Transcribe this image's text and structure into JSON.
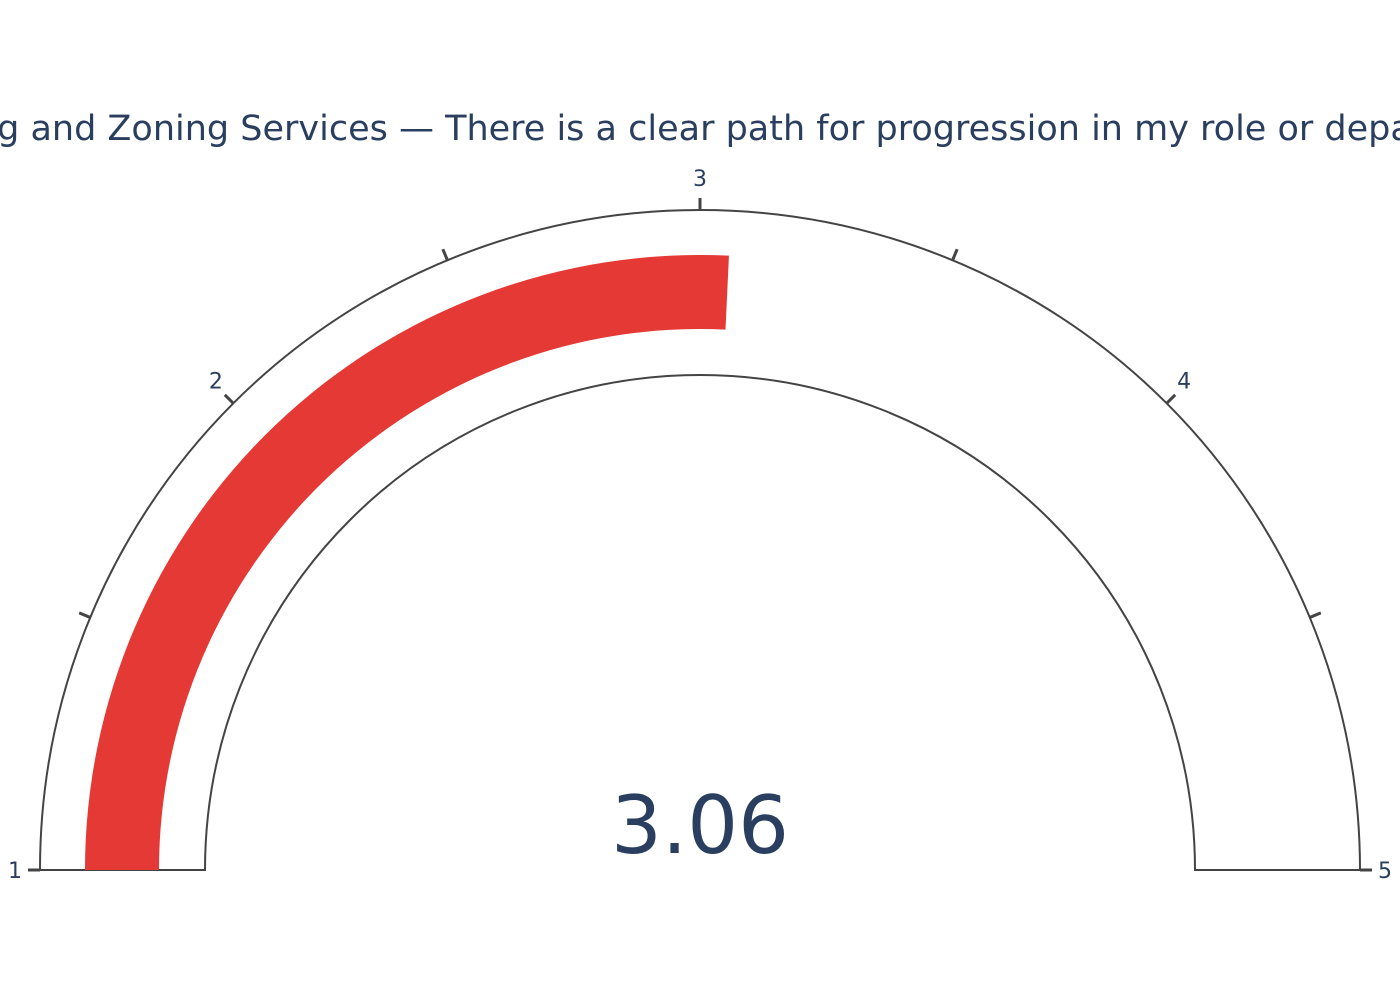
{
  "chart_data": {
    "type": "gauge",
    "title": "Planning and Zoning Services — There is a clear path for progression in my role or department",
    "value": 3.06,
    "value_label": "3.06",
    "range": [
      1,
      5
    ],
    "major_ticks": [
      1,
      2,
      3,
      4,
      5
    ],
    "minor_ticks": [
      1.5,
      2.5,
      3.5,
      4.5
    ],
    "tick_labels": [
      "1",
      "2",
      "3",
      "4",
      "5"
    ],
    "bar_color": "#e53935",
    "outline_color": "#444444",
    "text_color": "#2a3f5f"
  }
}
